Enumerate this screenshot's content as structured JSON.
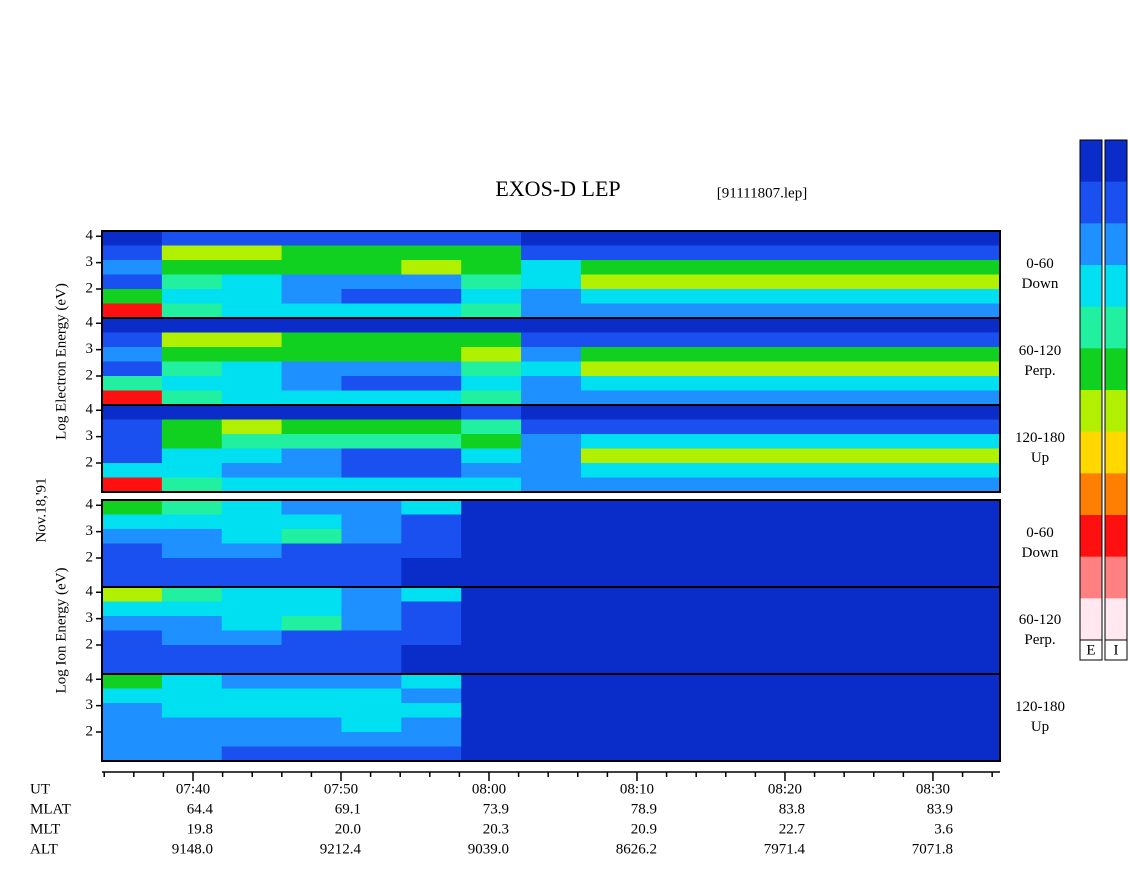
{
  "chart_data": {
    "type": "heatmap",
    "title": "EXOS-D LEP",
    "subtitle": "[91111807.lep]",
    "date": "Nov.18,'91",
    "xlim": [
      453.85,
      514.53
    ],
    "xticks": [
      {
        "value": 460,
        "label": "07:40"
      },
      {
        "value": 470,
        "label": "07:50"
      },
      {
        "value": 480,
        "label": "08:00"
      },
      {
        "value": 490,
        "label": "08:10"
      },
      {
        "value": 500,
        "label": "08:20"
      },
      {
        "value": 510,
        "label": "08:30"
      }
    ],
    "xminorticks": [
      454,
      456,
      458,
      462,
      464,
      466,
      468,
      472,
      474,
      476,
      478,
      482,
      484,
      486,
      488,
      492,
      494,
      496,
      498,
      502,
      504,
      506,
      508,
      512,
      514
    ],
    "colormap": [
      "#0a2cc8",
      "#1a50f0",
      "#1e90ff",
      "#00e0f0",
      "#20f0a0",
      "#10d020",
      "#b0f000",
      "#ffd800",
      "#ff8000",
      "#ff1010",
      "#ff8080",
      "#ffe8f0"
    ],
    "colorbar_labels": [
      "E",
      "I"
    ],
    "groups": [
      {
        "ylabel": "Log  Electron  Energy (eV)",
        "panels": [
          {
            "pitch": [
              "0-60",
              "Down"
            ],
            "ylim": [
              0.9,
              4.2
            ],
            "yticks": [
              2,
              3,
              4
            ],
            "z": [
              [
                0,
                1,
                1,
                1,
                1,
                1,
                1,
                0,
                0,
                0,
                0,
                0,
                0,
                0,
                0
              ],
              [
                1,
                6,
                6,
                5,
                5,
                5,
                5,
                1,
                1,
                1,
                1,
                1,
                1,
                1,
                1
              ],
              [
                2,
                5,
                5,
                5,
                5,
                6,
                5,
                3,
                5,
                5,
                5,
                5,
                5,
                5,
                5
              ],
              [
                1,
                4,
                3,
                2,
                2,
                2,
                4,
                3,
                6,
                6,
                6,
                6,
                6,
                6,
                6
              ],
              [
                5,
                3,
                3,
                2,
                1,
                1,
                3,
                2,
                3,
                3,
                3,
                3,
                3,
                3,
                3
              ],
              [
                9,
                4,
                3,
                3,
                3,
                3,
                4,
                2,
                2,
                2,
                2,
                2,
                2,
                2,
                2
              ]
            ]
          },
          {
            "pitch": [
              "60-120",
              "Perp."
            ],
            "ylim": [
              0.9,
              4.2
            ],
            "yticks": [
              2,
              3,
              4
            ],
            "z": [
              [
                0,
                0,
                0,
                0,
                0,
                0,
                0,
                0,
                0,
                0,
                0,
                0,
                0,
                0,
                0
              ],
              [
                1,
                6,
                6,
                5,
                5,
                5,
                5,
                1,
                1,
                1,
                1,
                1,
                1,
                1,
                1
              ],
              [
                2,
                5,
                5,
                5,
                5,
                5,
                6,
                2,
                5,
                5,
                5,
                5,
                5,
                5,
                5
              ],
              [
                1,
                4,
                3,
                2,
                2,
                2,
                4,
                3,
                6,
                6,
                6,
                6,
                6,
                6,
                6
              ],
              [
                4,
                3,
                3,
                2,
                1,
                1,
                3,
                2,
                3,
                3,
                3,
                3,
                3,
                3,
                3
              ],
              [
                9,
                4,
                3,
                3,
                3,
                3,
                4,
                2,
                2,
                2,
                2,
                2,
                2,
                2,
                2
              ]
            ]
          },
          {
            "pitch": [
              "120-180",
              "Up"
            ],
            "ylim": [
              0.9,
              4.2
            ],
            "yticks": [
              2,
              3,
              4
            ],
            "z": [
              [
                0,
                0,
                0,
                0,
                0,
                0,
                1,
                0,
                0,
                0,
                0,
                0,
                0,
                0,
                0
              ],
              [
                1,
                5,
                6,
                5,
                5,
                5,
                4,
                1,
                1,
                1,
                1,
                1,
                1,
                1,
                1
              ],
              [
                1,
                5,
                4,
                4,
                4,
                4,
                5,
                2,
                3,
                3,
                3,
                3,
                3,
                3,
                3
              ],
              [
                1,
                3,
                3,
                2,
                1,
                1,
                3,
                2,
                6,
                6,
                6,
                6,
                6,
                6,
                6
              ],
              [
                3,
                3,
                2,
                2,
                1,
                1,
                2,
                2,
                3,
                3,
                3,
                3,
                3,
                3,
                3
              ],
              [
                9,
                4,
                3,
                3,
                3,
                3,
                3,
                2,
                2,
                2,
                2,
                2,
                2,
                2,
                2
              ]
            ]
          }
        ]
      },
      {
        "ylabel": "Log  Ion  Energy (eV)",
        "panels": [
          {
            "pitch": [
              "0-60",
              "Down"
            ],
            "ylim": [
              0.9,
              4.2
            ],
            "yticks": [
              2,
              3,
              4
            ],
            "z": [
              [
                5,
                4,
                3,
                2,
                2,
                3,
                0,
                0,
                0,
                0,
                0,
                0,
                0,
                0,
                0
              ],
              [
                3,
                3,
                3,
                3,
                2,
                1,
                0,
                0,
                0,
                0,
                0,
                0,
                0,
                0,
                0
              ],
              [
                2,
                2,
                3,
                4,
                2,
                1,
                0,
                0,
                0,
                0,
                0,
                0,
                0,
                0,
                0
              ],
              [
                1,
                2,
                2,
                1,
                1,
                1,
                0,
                0,
                0,
                0,
                0,
                0,
                0,
                0,
                0
              ],
              [
                1,
                1,
                1,
                1,
                1,
                0,
                0,
                0,
                0,
                0,
                0,
                0,
                0,
                0,
                0
              ],
              [
                1,
                1,
                1,
                1,
                1,
                0,
                0,
                0,
                0,
                0,
                0,
                0,
                0,
                0,
                0
              ]
            ]
          },
          {
            "pitch": [
              "60-120",
              "Perp."
            ],
            "ylim": [
              0.9,
              4.2
            ],
            "yticks": [
              2,
              3,
              4
            ],
            "z": [
              [
                6,
                4,
                3,
                3,
                2,
                3,
                0,
                0,
                0,
                0,
                0,
                0,
                0,
                0,
                0
              ],
              [
                3,
                3,
                3,
                3,
                2,
                1,
                0,
                0,
                0,
                0,
                0,
                0,
                0,
                0,
                0
              ],
              [
                2,
                2,
                3,
                4,
                2,
                1,
                0,
                0,
                0,
                0,
                0,
                0,
                0,
                0,
                0
              ],
              [
                1,
                2,
                2,
                1,
                1,
                1,
                0,
                0,
                0,
                0,
                0,
                0,
                0,
                0,
                0
              ],
              [
                1,
                1,
                1,
                1,
                1,
                0,
                0,
                0,
                0,
                0,
                0,
                0,
                0,
                0,
                0
              ],
              [
                1,
                1,
                1,
                1,
                1,
                0,
                0,
                0,
                0,
                0,
                0,
                0,
                0,
                0,
                0
              ]
            ]
          },
          {
            "pitch": [
              "120-180",
              "Up"
            ],
            "ylim": [
              0.9,
              4.2
            ],
            "yticks": [
              2,
              3,
              4
            ],
            "z": [
              [
                5,
                3,
                2,
                2,
                2,
                3,
                0,
                0,
                0,
                0,
                0,
                0,
                0,
                0,
                0
              ],
              [
                3,
                3,
                3,
                3,
                3,
                2,
                0,
                0,
                0,
                0,
                0,
                0,
                0,
                0,
                0
              ],
              [
                2,
                3,
                3,
                3,
                3,
                3,
                0,
                0,
                0,
                0,
                0,
                0,
                0,
                0,
                0
              ],
              [
                2,
                2,
                2,
                2,
                3,
                2,
                0,
                0,
                0,
                0,
                0,
                0,
                0,
                0,
                0
              ],
              [
                2,
                2,
                2,
                2,
                2,
                2,
                0,
                0,
                0,
                0,
                0,
                0,
                0,
                0,
                0
              ],
              [
                2,
                2,
                1,
                1,
                1,
                1,
                0,
                0,
                0,
                0,
                0,
                0,
                0,
                0,
                0
              ]
            ]
          }
        ]
      }
    ]
  },
  "orbit_table": {
    "labels": [
      "UT",
      "MLAT",
      "MLT",
      "ALT"
    ],
    "rows": [
      [
        "64.4",
        "69.1",
        "73.9",
        "78.9",
        "83.8",
        "83.9"
      ],
      [
        "19.8",
        "20.0",
        "20.3",
        "20.9",
        "22.7",
        "3.6"
      ],
      [
        "9148.0",
        "9212.4",
        "9039.0",
        "8626.2",
        "7971.4",
        "7071.8"
      ]
    ]
  }
}
